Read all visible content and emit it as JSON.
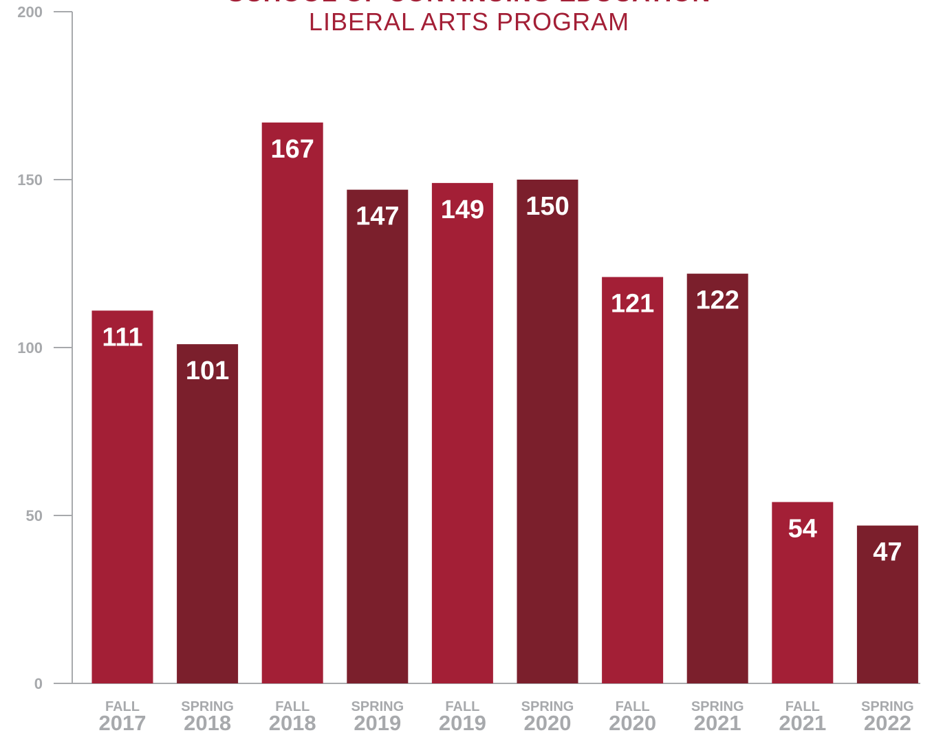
{
  "chart_data": {
    "type": "bar",
    "title": "SCHOOL OF CONTINUING EDUCATION",
    "subtitle": "LIBERAL ARTS PROGRAM",
    "categories": [
      {
        "term": "FALL",
        "year": "2017"
      },
      {
        "term": "SPRING",
        "year": "2018"
      },
      {
        "term": "FALL",
        "year": "2018"
      },
      {
        "term": "SPRING",
        "year": "2019"
      },
      {
        "term": "FALL",
        "year": "2019"
      },
      {
        "term": "SPRING",
        "year": "2020"
      },
      {
        "term": "FALL",
        "year": "2020"
      },
      {
        "term": "SPRING",
        "year": "2021"
      },
      {
        "term": "FALL",
        "year": "2021"
      },
      {
        "term": "SPRING",
        "year": "2022"
      }
    ],
    "values": [
      111,
      101,
      167,
      147,
      149,
      150,
      121,
      122,
      54,
      47
    ],
    "data_labels": [
      "111",
      "101",
      "167",
      "147",
      "149",
      "150",
      "121",
      "122",
      "54",
      "47"
    ],
    "ylim": [
      0,
      200
    ],
    "yticks": [
      0,
      50,
      100,
      150,
      200
    ],
    "ytick_labels": [
      "0",
      "50",
      "100",
      "150",
      "200"
    ],
    "grid": false,
    "legend": "none",
    "colors": {
      "fall": "#a31f36",
      "spring": "#7b1f2c",
      "axis": "#a7a9ac",
      "title": "#a31f36"
    }
  }
}
